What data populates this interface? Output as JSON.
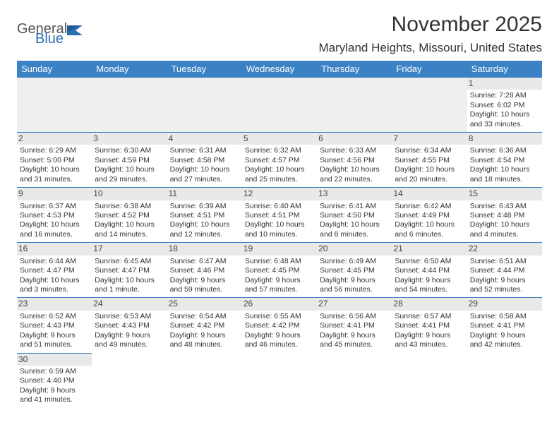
{
  "logo": {
    "text1": "General",
    "text2": "Blue",
    "text1_color": "#555555",
    "text2_color": "#2b6fb3",
    "shape_color": "#2b6fb3"
  },
  "title": "November 2025",
  "location": "Maryland Heights, Missouri, United States",
  "colors": {
    "header_bg": "#3b82c4",
    "header_text": "#ffffff",
    "daynum_bg": "#e9e9e9",
    "border": "#3b82c4",
    "text": "#333333",
    "page_bg": "#ffffff"
  },
  "fonts": {
    "title_size_pt": 22,
    "location_size_pt": 13,
    "header_size_pt": 10,
    "body_size_pt": 8,
    "family": "Arial"
  },
  "weekdays": [
    "Sunday",
    "Monday",
    "Tuesday",
    "Wednesday",
    "Thursday",
    "Friday",
    "Saturday"
  ],
  "weeks": [
    [
      null,
      null,
      null,
      null,
      null,
      null,
      {
        "n": "1",
        "sunrise": "Sunrise: 7:28 AM",
        "sunset": "Sunset: 6:02 PM",
        "daylight": "Daylight: 10 hours and 33 minutes."
      }
    ],
    [
      {
        "n": "2",
        "sunrise": "Sunrise: 6:29 AM",
        "sunset": "Sunset: 5:00 PM",
        "daylight": "Daylight: 10 hours and 31 minutes."
      },
      {
        "n": "3",
        "sunrise": "Sunrise: 6:30 AM",
        "sunset": "Sunset: 4:59 PM",
        "daylight": "Daylight: 10 hours and 29 minutes."
      },
      {
        "n": "4",
        "sunrise": "Sunrise: 6:31 AM",
        "sunset": "Sunset: 4:58 PM",
        "daylight": "Daylight: 10 hours and 27 minutes."
      },
      {
        "n": "5",
        "sunrise": "Sunrise: 6:32 AM",
        "sunset": "Sunset: 4:57 PM",
        "daylight": "Daylight: 10 hours and 25 minutes."
      },
      {
        "n": "6",
        "sunrise": "Sunrise: 6:33 AM",
        "sunset": "Sunset: 4:56 PM",
        "daylight": "Daylight: 10 hours and 22 minutes."
      },
      {
        "n": "7",
        "sunrise": "Sunrise: 6:34 AM",
        "sunset": "Sunset: 4:55 PM",
        "daylight": "Daylight: 10 hours and 20 minutes."
      },
      {
        "n": "8",
        "sunrise": "Sunrise: 6:36 AM",
        "sunset": "Sunset: 4:54 PM",
        "daylight": "Daylight: 10 hours and 18 minutes."
      }
    ],
    [
      {
        "n": "9",
        "sunrise": "Sunrise: 6:37 AM",
        "sunset": "Sunset: 4:53 PM",
        "daylight": "Daylight: 10 hours and 16 minutes."
      },
      {
        "n": "10",
        "sunrise": "Sunrise: 6:38 AM",
        "sunset": "Sunset: 4:52 PM",
        "daylight": "Daylight: 10 hours and 14 minutes."
      },
      {
        "n": "11",
        "sunrise": "Sunrise: 6:39 AM",
        "sunset": "Sunset: 4:51 PM",
        "daylight": "Daylight: 10 hours and 12 minutes."
      },
      {
        "n": "12",
        "sunrise": "Sunrise: 6:40 AM",
        "sunset": "Sunset: 4:51 PM",
        "daylight": "Daylight: 10 hours and 10 minutes."
      },
      {
        "n": "13",
        "sunrise": "Sunrise: 6:41 AM",
        "sunset": "Sunset: 4:50 PM",
        "daylight": "Daylight: 10 hours and 8 minutes."
      },
      {
        "n": "14",
        "sunrise": "Sunrise: 6:42 AM",
        "sunset": "Sunset: 4:49 PM",
        "daylight": "Daylight: 10 hours and 6 minutes."
      },
      {
        "n": "15",
        "sunrise": "Sunrise: 6:43 AM",
        "sunset": "Sunset: 4:48 PM",
        "daylight": "Daylight: 10 hours and 4 minutes."
      }
    ],
    [
      {
        "n": "16",
        "sunrise": "Sunrise: 6:44 AM",
        "sunset": "Sunset: 4:47 PM",
        "daylight": "Daylight: 10 hours and 3 minutes."
      },
      {
        "n": "17",
        "sunrise": "Sunrise: 6:45 AM",
        "sunset": "Sunset: 4:47 PM",
        "daylight": "Daylight: 10 hours and 1 minute."
      },
      {
        "n": "18",
        "sunrise": "Sunrise: 6:47 AM",
        "sunset": "Sunset: 4:46 PM",
        "daylight": "Daylight: 9 hours and 59 minutes."
      },
      {
        "n": "19",
        "sunrise": "Sunrise: 6:48 AM",
        "sunset": "Sunset: 4:45 PM",
        "daylight": "Daylight: 9 hours and 57 minutes."
      },
      {
        "n": "20",
        "sunrise": "Sunrise: 6:49 AM",
        "sunset": "Sunset: 4:45 PM",
        "daylight": "Daylight: 9 hours and 56 minutes."
      },
      {
        "n": "21",
        "sunrise": "Sunrise: 6:50 AM",
        "sunset": "Sunset: 4:44 PM",
        "daylight": "Daylight: 9 hours and 54 minutes."
      },
      {
        "n": "22",
        "sunrise": "Sunrise: 6:51 AM",
        "sunset": "Sunset: 4:44 PM",
        "daylight": "Daylight: 9 hours and 52 minutes."
      }
    ],
    [
      {
        "n": "23",
        "sunrise": "Sunrise: 6:52 AM",
        "sunset": "Sunset: 4:43 PM",
        "daylight": "Daylight: 9 hours and 51 minutes."
      },
      {
        "n": "24",
        "sunrise": "Sunrise: 6:53 AM",
        "sunset": "Sunset: 4:43 PM",
        "daylight": "Daylight: 9 hours and 49 minutes."
      },
      {
        "n": "25",
        "sunrise": "Sunrise: 6:54 AM",
        "sunset": "Sunset: 4:42 PM",
        "daylight": "Daylight: 9 hours and 48 minutes."
      },
      {
        "n": "26",
        "sunrise": "Sunrise: 6:55 AM",
        "sunset": "Sunset: 4:42 PM",
        "daylight": "Daylight: 9 hours and 46 minutes."
      },
      {
        "n": "27",
        "sunrise": "Sunrise: 6:56 AM",
        "sunset": "Sunset: 4:41 PM",
        "daylight": "Daylight: 9 hours and 45 minutes."
      },
      {
        "n": "28",
        "sunrise": "Sunrise: 6:57 AM",
        "sunset": "Sunset: 4:41 PM",
        "daylight": "Daylight: 9 hours and 43 minutes."
      },
      {
        "n": "29",
        "sunrise": "Sunrise: 6:58 AM",
        "sunset": "Sunset: 4:41 PM",
        "daylight": "Daylight: 9 hours and 42 minutes."
      }
    ],
    [
      {
        "n": "30",
        "sunrise": "Sunrise: 6:59 AM",
        "sunset": "Sunset: 4:40 PM",
        "daylight": "Daylight: 9 hours and 41 minutes."
      },
      null,
      null,
      null,
      null,
      null,
      null
    ]
  ]
}
